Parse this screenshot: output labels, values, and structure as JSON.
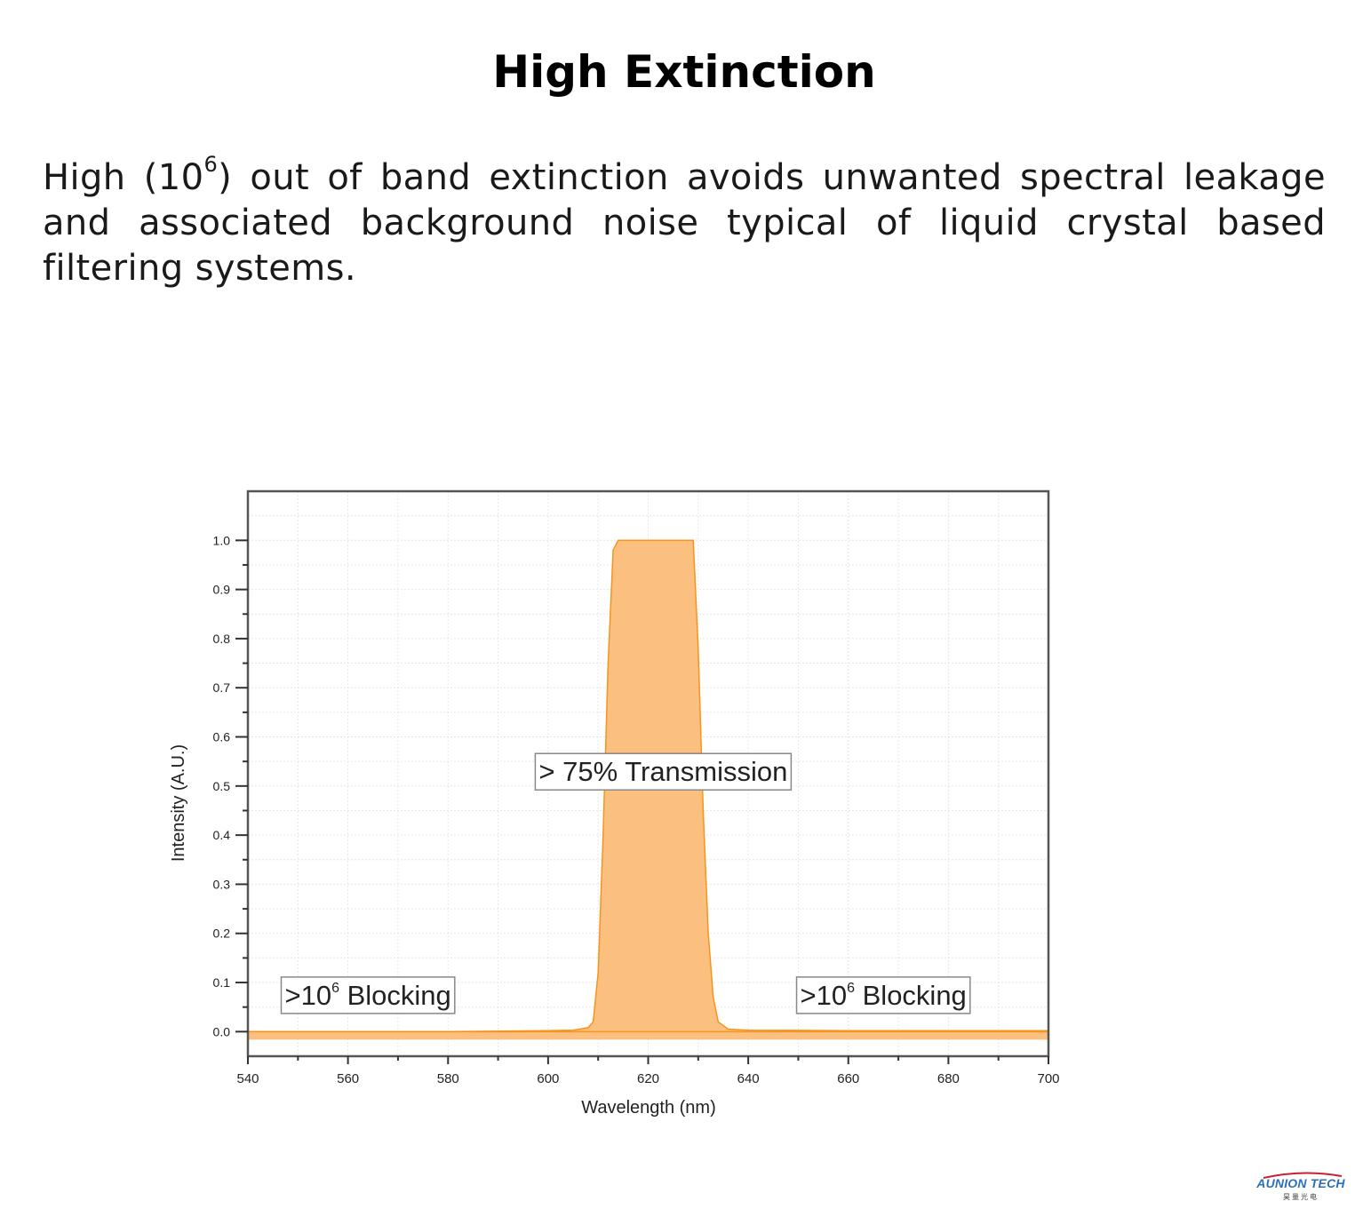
{
  "heading": "High Extinction",
  "paragraph": {
    "before_sup": "High (10",
    "sup": "6",
    "after_sup": ") out of band extinction avoids unwanted spectral leakage and associated background noise typical of liquid crystal based filtering systems."
  },
  "logo": {
    "name": "AUNION TECH",
    "subtitle": "昊量光电"
  },
  "chart_data": {
    "type": "area",
    "xlabel": "Wavelength (nm)",
    "ylabel": "Intensity (A.U.)",
    "xlim": [
      540,
      700
    ],
    "ylim": [
      -0.05,
      1.1
    ],
    "x_ticks": [
      540,
      560,
      580,
      600,
      620,
      640,
      660,
      680,
      700
    ],
    "y_ticks": [
      0.0,
      0.1,
      0.2,
      0.3,
      0.4,
      0.5,
      0.6,
      0.7,
      0.8,
      0.9,
      1.0
    ],
    "y_tick_labels": [
      "0.0",
      "0.1",
      "0.2",
      "0.3",
      "0.4",
      "0.5",
      "0.6",
      "0.7",
      "0.8",
      "0.9",
      "1.0"
    ],
    "grid": true,
    "series": [
      {
        "color": "#f7941d",
        "fill": "#fbbf80",
        "x": [
          540,
          560,
          580,
          600,
          605,
          608,
          609,
          610,
          611,
          612,
          613,
          614,
          616,
          620,
          625,
          628,
          629,
          630,
          631,
          632,
          633,
          634,
          636,
          640,
          660,
          680,
          700
        ],
        "y": [
          0.0,
          0.0,
          0.0,
          0.002,
          0.003,
          0.008,
          0.02,
          0.12,
          0.4,
          0.75,
          0.98,
          1.0,
          1.0,
          1.0,
          1.0,
          1.0,
          1.0,
          0.78,
          0.45,
          0.2,
          0.07,
          0.02,
          0.005,
          0.003,
          0.002,
          0.002,
          0.002
        ]
      }
    ],
    "annotations": [
      {
        "text": "> 75% Transmission",
        "x": 623,
        "y": 0.53
      },
      {
        "text_main": ">10",
        "text_sup": "6",
        "text_after": " Blocking",
        "x": 564,
        "y": 0.075
      },
      {
        "text_main": ">10",
        "text_sup": "6",
        "text_after": " Blocking",
        "x": 667,
        "y": 0.075
      }
    ]
  }
}
